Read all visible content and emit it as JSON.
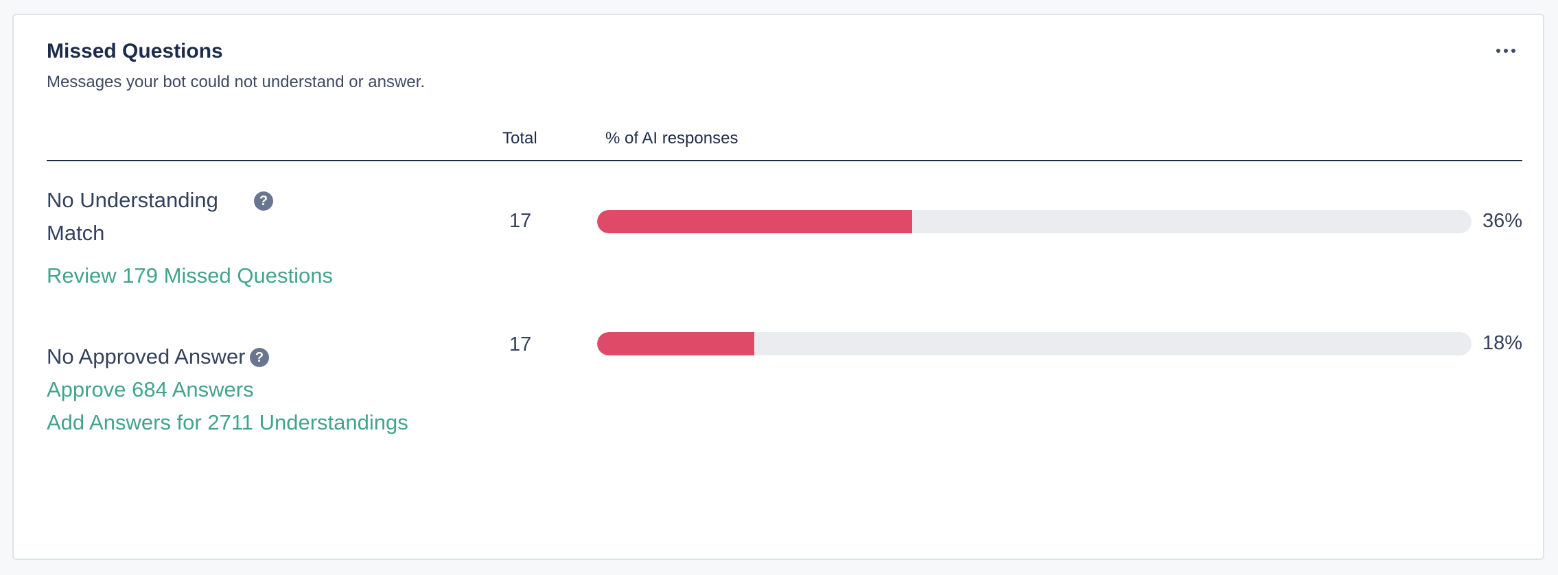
{
  "card": {
    "title": "Missed Questions",
    "subtitle": "Messages your bot could not understand or answer.",
    "more_icon": "ellipsis-horizontal-icon"
  },
  "table": {
    "columns": {
      "total": "Total",
      "percent": "% of AI responses"
    },
    "rows": [
      {
        "label": "No Understanding Match",
        "help_icon": "question-circle-icon",
        "total": "17",
        "percent_label": "36%",
        "percent_value": 36,
        "links": [
          "Review 179 Missed Questions"
        ]
      },
      {
        "label": "No Approved Answer",
        "help_icon": "question-circle-icon",
        "total": "17",
        "percent_label": "18%",
        "percent_value": 18,
        "links": [
          "Approve 684 Answers",
          "Add Answers for 2711 Understandings"
        ]
      }
    ]
  },
  "colors": {
    "bar_fill": "#df4a68",
    "bar_track": "#ebecf0",
    "link": "#41a587",
    "heading": "#1c2b4a"
  }
}
